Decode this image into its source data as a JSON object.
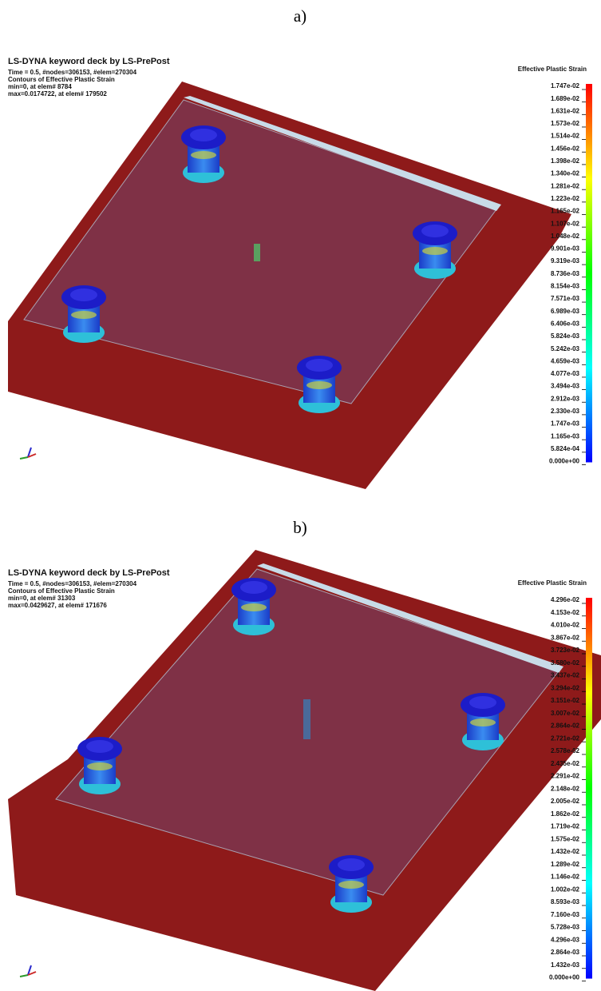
{
  "panels": [
    {
      "label": "a)",
      "header": [
        "LS-DYNA keyword deck by LS-PrePost",
        "Time =        0.5, #nodes=306153, #elem=270304",
        "Contours of Effective Plastic Strain",
        " min=0, at elem# 8784",
        " max=0.0174722, at elem# 179502"
      ],
      "legend": {
        "title": "Effective Plastic Strain",
        "labels": [
          "1.747e-02",
          "1.689e-02",
          "1.631e-02",
          "1.573e-02",
          "1.514e-02",
          "1.456e-02",
          "1.398e-02",
          "1.340e-02",
          "1.281e-02",
          "1.223e-02",
          "1.165e-02",
          "1.107e-02",
          "1.048e-02",
          "9.901e-03",
          "9.319e-03",
          "8.736e-03",
          "8.154e-03",
          "7.571e-03",
          "6.989e-03",
          "6.406e-03",
          "5.824e-03",
          "5.242e-03",
          "4.659e-03",
          "4.077e-03",
          "3.494e-03",
          "2.912e-03",
          "2.330e-03",
          "1.747e-03",
          "1.165e-03",
          "5.824e-04",
          "0.000e+00"
        ]
      }
    },
    {
      "label": "b)",
      "header": [
        "LS-DYNA keyword deck by LS-PrePost",
        "Time =        0.5, #nodes=306153, #elem=270304",
        "Contours of Effective Plastic Strain",
        " min=0, at elem# 31303",
        " max=0.0429627, at elem# 171676"
      ],
      "legend": {
        "title": "Effective Plastic Strain",
        "labels": [
          "4.296e-02",
          "4.153e-02",
          "4.010e-02",
          "3.867e-02",
          "3.723e-02",
          "3.580e-02",
          "3.437e-02",
          "3.294e-02",
          "3.151e-02",
          "3.007e-02",
          "2.864e-02",
          "2.721e-02",
          "2.578e-02",
          "2.435e-02",
          "2.291e-02",
          "2.148e-02",
          "2.005e-02",
          "1.862e-02",
          "1.719e-02",
          "1.575e-02",
          "1.432e-02",
          "1.289e-02",
          "1.146e-02",
          "1.002e-02",
          "8.593e-03",
          "7.160e-03",
          "5.728e-03",
          "4.296e-03",
          "2.864e-03",
          "1.432e-03",
          "0.000e+00"
        ]
      }
    }
  ]
}
